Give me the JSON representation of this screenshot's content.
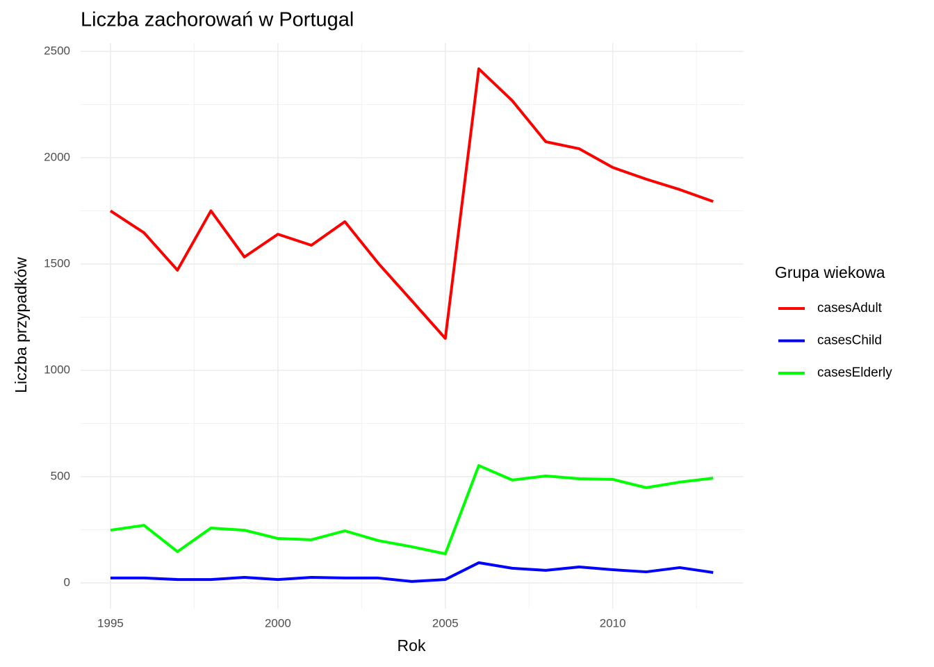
{
  "chart_data": {
    "type": "line",
    "title": "Liczba zachorowań w Portugal",
    "x_label": "Rok",
    "y_label": "Liczba przypadków",
    "legend_title": "Grupa wiekowa",
    "legend": "right",
    "grid": true,
    "x": [
      1995,
      1996,
      1997,
      1998,
      1999,
      2000,
      2001,
      2002,
      2003,
      2004,
      2005,
      2006,
      2007,
      2008,
      2009,
      2010,
      2011,
      2012,
      2013
    ],
    "xlim": [
      1994.1,
      2013.9
    ],
    "xticks": [
      1995,
      2000,
      2005,
      2010
    ],
    "ylim": [
      -121,
      2539
    ],
    "yticks": [
      0,
      500,
      1000,
      1500,
      2000,
      2500
    ],
    "series": [
      {
        "name": "casesAdult",
        "color": "#ff0000",
        "values": [
          1750,
          1647,
          1471,
          1750,
          1533,
          1640,
          1588,
          1699,
          1503,
          1327,
          1150,
          2418,
          2268,
          2075,
          2042,
          1954,
          1899,
          1850,
          1794
        ]
      },
      {
        "name": "casesChild",
        "color": "#0000ff",
        "values": [
          23,
          23,
          16,
          16,
          26,
          16,
          26,
          23,
          23,
          7,
          16,
          95,
          69,
          59,
          75,
          62,
          52,
          72,
          49
        ]
      },
      {
        "name": "casesElderly",
        "color": "#00ff00",
        "values": [
          248,
          271,
          147,
          258,
          248,
          209,
          203,
          245,
          199,
          170,
          137,
          552,
          484,
          503,
          490,
          487,
          448,
          474,
          493
        ]
      }
    ]
  }
}
